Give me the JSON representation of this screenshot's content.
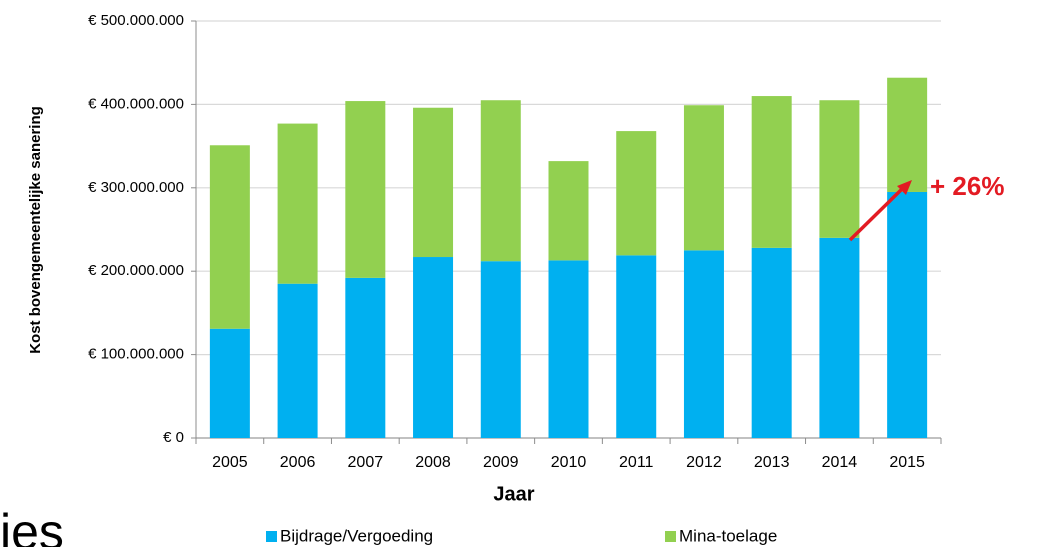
{
  "chart_data": {
    "type": "stacked_bar",
    "x_label": "Jaar",
    "y_label": "Kost bovengemeentelijke sanering",
    "categories": [
      "2005",
      "2006",
      "2007",
      "2008",
      "2009",
      "2010",
      "2011",
      "2012",
      "2013",
      "2014",
      "2015"
    ],
    "series": [
      {
        "name": "Bijdrage/Vergoeding",
        "color": "#00b0f0",
        "values": [
          131000000,
          185000000,
          192000000,
          217000000,
          212000000,
          213000000,
          219000000,
          225000000,
          228000000,
          240000000,
          295000000
        ]
      },
      {
        "name": "Mina-toelage",
        "color": "#92d050",
        "values": [
          220000000,
          192000000,
          212000000,
          179000000,
          193000000,
          119000000,
          149000000,
          174000000,
          182000000,
          165000000,
          137000000
        ]
      }
    ],
    "ylim": [
      0,
      500000000
    ],
    "yticks": [
      {
        "value": 0,
        "label": "€ 0"
      },
      {
        "value": 100000000,
        "label": "€ 100.000.000"
      },
      {
        "value": 200000000,
        "label": "€ 200.000.000"
      },
      {
        "value": 300000000,
        "label": "€ 300.000.000"
      },
      {
        "value": 400000000,
        "label": "€ 400.000.000"
      },
      {
        "value": 500000000,
        "label": "€ 500.000.000"
      }
    ],
    "grid": true,
    "legend": "bottom",
    "annotation": "+ 26%",
    "cropped_text": "ies"
  }
}
